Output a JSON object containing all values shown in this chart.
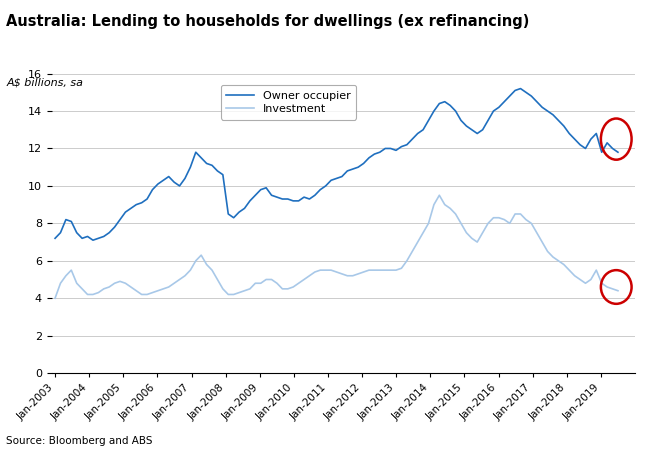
{
  "title": "Australia: Lending to households for dwellings (ex refinancing)",
  "ylabel": "A$ billions, sa",
  "source": "Source: Bloomberg and ABS",
  "ylim": [
    0,
    16
  ],
  "yticks": [
    0,
    2,
    4,
    6,
    8,
    10,
    12,
    14,
    16
  ],
  "owner_color": "#1F6FBF",
  "investment_color": "#A8C8E8",
  "circle_color": "#CC0000",
  "owner_occupier": [
    7.2,
    7.5,
    8.2,
    8.1,
    7.5,
    7.2,
    7.3,
    7.1,
    7.2,
    7.3,
    7.5,
    7.8,
    8.2,
    8.6,
    8.8,
    9.0,
    9.1,
    9.3,
    9.8,
    10.1,
    10.3,
    10.5,
    10.2,
    10.0,
    10.4,
    11.0,
    11.8,
    11.5,
    11.2,
    11.1,
    10.8,
    10.6,
    8.5,
    8.3,
    8.6,
    8.8,
    9.2,
    9.5,
    9.8,
    9.9,
    9.5,
    9.4,
    9.3,
    9.3,
    9.2,
    9.2,
    9.4,
    9.3,
    9.5,
    9.8,
    10.0,
    10.3,
    10.4,
    10.5,
    10.8,
    10.9,
    11.0,
    11.2,
    11.5,
    11.7,
    11.8,
    12.0,
    12.0,
    11.9,
    12.1,
    12.2,
    12.5,
    12.8,
    13.0,
    13.5,
    14.0,
    14.4,
    14.5,
    14.3,
    14.0,
    13.5,
    13.2,
    13.0,
    12.8,
    13.0,
    13.5,
    14.0,
    14.2,
    14.5,
    14.8,
    15.1,
    15.2,
    15.0,
    14.8,
    14.5,
    14.2,
    14.0,
    13.8,
    13.5,
    13.2,
    12.8,
    12.5,
    12.2,
    12.0,
    12.5,
    12.8,
    11.8,
    12.3,
    12.0,
    11.8
  ],
  "investment": [
    4.0,
    4.8,
    5.2,
    5.5,
    4.8,
    4.5,
    4.2,
    4.2,
    4.3,
    4.5,
    4.6,
    4.8,
    4.9,
    4.8,
    4.6,
    4.4,
    4.2,
    4.2,
    4.3,
    4.4,
    4.5,
    4.6,
    4.8,
    5.0,
    5.2,
    5.5,
    6.0,
    6.3,
    5.8,
    5.5,
    5.0,
    4.5,
    4.2,
    4.2,
    4.3,
    4.4,
    4.5,
    4.8,
    4.8,
    5.0,
    5.0,
    4.8,
    4.5,
    4.5,
    4.6,
    4.8,
    5.0,
    5.2,
    5.4,
    5.5,
    5.5,
    5.5,
    5.4,
    5.3,
    5.2,
    5.2,
    5.3,
    5.4,
    5.5,
    5.5,
    5.5,
    5.5,
    5.5,
    5.5,
    5.6,
    6.0,
    6.5,
    7.0,
    7.5,
    8.0,
    9.0,
    9.5,
    9.0,
    8.8,
    8.5,
    8.0,
    7.5,
    7.2,
    7.0,
    7.5,
    8.0,
    8.3,
    8.3,
    8.2,
    8.0,
    8.5,
    8.5,
    8.2,
    8.0,
    7.5,
    7.0,
    6.5,
    6.2,
    6.0,
    5.8,
    5.5,
    5.2,
    5.0,
    4.8,
    5.0,
    5.5,
    4.8,
    4.6,
    4.5,
    4.4
  ],
  "n_points": 105,
  "start_year": 2003,
  "xtick_years": [
    2003,
    2004,
    2005,
    2006,
    2007,
    2008,
    2009,
    2010,
    2011,
    2012,
    2013,
    2014,
    2015,
    2016,
    2017,
    2018,
    2019
  ]
}
